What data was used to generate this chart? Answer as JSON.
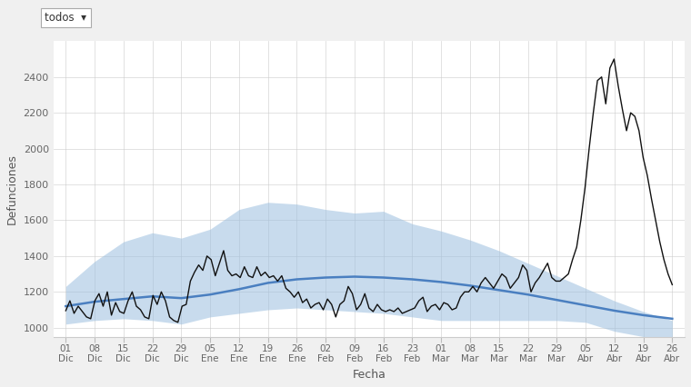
{
  "background_color": "#f0f0f0",
  "plot_bg_color": "#ffffff",
  "ylabel": "Defunciones",
  "xlabel": "Fecha",
  "ylim": [
    950,
    2600
  ],
  "yticks": [
    1000,
    1200,
    1400,
    1600,
    1800,
    2000,
    2200,
    2400
  ],
  "grid_color": "#cccccc",
  "blue_line_color": "#4a7fc0",
  "black_line_color": "#111111",
  "fill_color": "#9bbfdf",
  "fill_alpha": 0.55,
  "x_labels": [
    "01\nDic",
    "08\nDic",
    "15\nDic",
    "22\nDic",
    "29\nDic",
    "05\nEne",
    "12\nEne",
    "19\nEne",
    "26\nEne",
    "02\nFeb",
    "09\nFeb",
    "16\nFeb",
    "23\nFeb",
    "01\nMar",
    "08\nMar",
    "15\nMar",
    "22\nMar",
    "29\nMar",
    "05\nAbr",
    "12\nAbr",
    "19\nAbr",
    "26\nAbr"
  ],
  "n_days": 147,
  "blue_line_y": [
    1120,
    1145,
    1160,
    1175,
    1165,
    1185,
    1215,
    1250,
    1270,
    1280,
    1285,
    1280,
    1270,
    1255,
    1235,
    1210,
    1185,
    1155,
    1125,
    1095,
    1070,
    1050
  ],
  "upper_band_y": [
    1230,
    1370,
    1480,
    1530,
    1500,
    1550,
    1660,
    1700,
    1690,
    1660,
    1640,
    1650,
    1580,
    1540,
    1490,
    1430,
    1360,
    1290,
    1220,
    1150,
    1090,
    1040
  ],
  "lower_band_y": [
    1020,
    1040,
    1050,
    1040,
    1020,
    1060,
    1080,
    1100,
    1110,
    1100,
    1090,
    1080,
    1060,
    1040,
    1040,
    1040,
    1040,
    1040,
    1030,
    980,
    950,
    930
  ],
  "black_line_daily": [
    1095,
    1150,
    1080,
    1120,
    1090,
    1060,
    1050,
    1150,
    1190,
    1120,
    1200,
    1070,
    1140,
    1090,
    1080,
    1150,
    1200,
    1120,
    1100,
    1060,
    1050,
    1180,
    1130,
    1200,
    1150,
    1060,
    1040,
    1030,
    1120,
    1130,
    1260,
    1310,
    1350,
    1320,
    1400,
    1380,
    1290,
    1360,
    1430,
    1320,
    1290,
    1300,
    1280,
    1340,
    1290,
    1280,
    1340,
    1290,
    1310,
    1280,
    1290,
    1260,
    1290,
    1220,
    1200,
    1170,
    1200,
    1140,
    1160,
    1110,
    1130,
    1140,
    1100,
    1160,
    1130,
    1060,
    1130,
    1150,
    1230,
    1190,
    1100,
    1130,
    1190,
    1110,
    1090,
    1130,
    1100,
    1090,
    1100,
    1090,
    1110,
    1080,
    1090,
    1100,
    1110,
    1150,
    1170,
    1090,
    1120,
    1130,
    1100,
    1140,
    1130,
    1100,
    1110,
    1170,
    1200,
    1200,
    1230,
    1200,
    1250,
    1280,
    1250,
    1220,
    1260,
    1300,
    1280,
    1220,
    1250,
    1280,
    1350,
    1320,
    1200,
    1250,
    1280,
    1320,
    1360,
    1280,
    1260,
    1260,
    1280,
    1300,
    1380,
    1450,
    1600,
    1780,
    2000,
    2200,
    2380,
    2400,
    2250,
    2450,
    2500,
    2350,
    2220,
    2100,
    2200,
    2180,
    2100,
    1950,
    1850,
    1720,
    1600,
    1480,
    1380,
    1300,
    1240
  ],
  "todos_text": "todos  ▾"
}
